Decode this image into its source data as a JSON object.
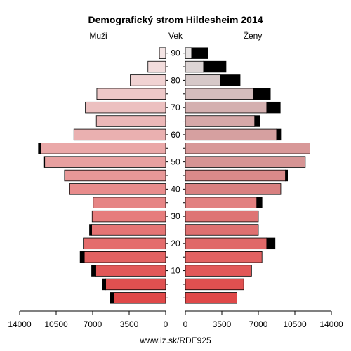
{
  "chart_data": {
    "type": "bar",
    "title": "Demografický strom Hildesheim 2014",
    "left_label": "Muži",
    "center_label": "Vek",
    "right_label": "Ženy",
    "footer": "www.iz.sk/RDE925",
    "x_max": 14000,
    "x_ticks_left": [
      "14000",
      "10500",
      "7000",
      "3500",
      "0"
    ],
    "x_ticks_right": [
      "0",
      "3500",
      "7000",
      "10500",
      "14000"
    ],
    "x_tick_values_left": [
      14000,
      10500,
      7000,
      3500,
      0
    ],
    "x_tick_values_right": [
      0,
      3500,
      7000,
      10500,
      14000
    ],
    "age_groups": [
      "0-4",
      "5-9",
      "10-14",
      "15-19",
      "20-24",
      "25-29",
      "30-34",
      "35-39",
      "40-44",
      "45-49",
      "50-54",
      "55-59",
      "60-64",
      "65-69",
      "70-74",
      "75-79",
      "80-84",
      "85-89",
      "90+"
    ],
    "age_axis_labels": [
      {
        "group_index": 2,
        "label": "10"
      },
      {
        "group_index": 4,
        "label": "20"
      },
      {
        "group_index": 6,
        "label": "30"
      },
      {
        "group_index": 8,
        "label": "40"
      },
      {
        "group_index": 10,
        "label": "50"
      },
      {
        "group_index": 12,
        "label": "60"
      },
      {
        "group_index": 14,
        "label": "70"
      },
      {
        "group_index": 16,
        "label": "80"
      },
      {
        "group_index": 18,
        "label": "90"
      }
    ],
    "series": [
      {
        "side": "male",
        "values": [
          4950,
          5750,
          6700,
          7800,
          7900,
          7100,
          7050,
          6950,
          9200,
          9700,
          11600,
          12000,
          8800,
          6650,
          7700,
          6600,
          3400,
          1700,
          600
        ]
      },
      {
        "side": "male_excess",
        "values": [
          350,
          300,
          400,
          400,
          0,
          200,
          0,
          0,
          0,
          0,
          100,
          200,
          0,
          0,
          0,
          0,
          0,
          0,
          0
        ]
      },
      {
        "side": "female",
        "values": [
          4950,
          5600,
          6350,
          7350,
          7800,
          7000,
          7000,
          6850,
          9150,
          9600,
          11500,
          11950,
          8750,
          6650,
          7800,
          6500,
          3350,
          1750,
          600
        ]
      },
      {
        "side": "female_excess",
        "values": [
          0,
          0,
          0,
          0,
          800,
          0,
          0,
          500,
          0,
          200,
          0,
          0,
          400,
          500,
          1300,
          1650,
          1900,
          2150,
          1550
        ]
      }
    ],
    "male_colors": [
      "#e04848",
      "#e05050",
      "#e25858",
      "#e26262",
      "#e46c6c",
      "#e47474",
      "#e67c7c",
      "#e68484",
      "#e88c8c",
      "#e89898",
      "#e8a0a0",
      "#eaa8a8",
      "#eab0b0",
      "#ecb8b8",
      "#ecc0c0",
      "#eec8c8",
      "#f0d2d2",
      "#f2dcdc",
      "#f4e4e4"
    ],
    "female_colors": [
      "#e04848",
      "#e05050",
      "#e25858",
      "#e26262",
      "#e06868",
      "#de7070",
      "#de7474",
      "#e28080",
      "#d88080",
      "#da8a8a",
      "#d69494",
      "#d89898",
      "#d6a0a0",
      "#d6a8a8",
      "#d4b0b0",
      "#d4bcbc",
      "#d6c8c8",
      "#dcd4d4",
      "#e8e4e4"
    ],
    "excess_color": "#000000"
  }
}
